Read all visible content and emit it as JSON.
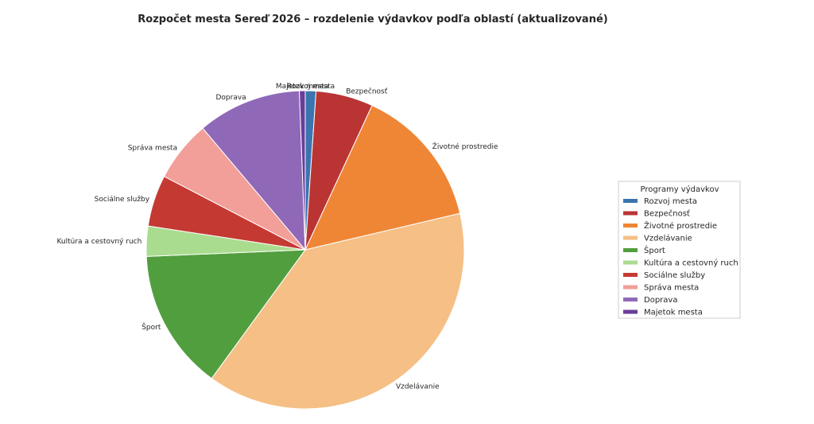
{
  "chart_data": {
    "type": "pie",
    "title": "Rozpočet mesta Sereď 2026 – rozdelenie výdavkov podľa oblastí (aktualizované)",
    "start_angle_deg": 90,
    "direction": "clockwise",
    "slices": [
      {
        "label": "Rozvoj mesta",
        "value": 1.1,
        "color": "#3b75af"
      },
      {
        "label": "Bezpečnosť",
        "value": 5.9,
        "color": "#bb3434"
      },
      {
        "label": "Životné prostredie",
        "value": 14.6,
        "color": "#ef8636"
      },
      {
        "label": "Vzdelávanie",
        "value": 39.2,
        "color": "#f5bf85"
      },
      {
        "label": "Šport",
        "value": 14.5,
        "color": "#519e3e"
      },
      {
        "label": "Kultúra a cestovný ruch",
        "value": 3.1,
        "color": "#aadc8f"
      },
      {
        "label": "Sociálne služby",
        "value": 5.3,
        "color": "#c43a33"
      },
      {
        "label": "Správa mesta",
        "value": 6.3,
        "color": "#f29f99"
      },
      {
        "label": "Doprava",
        "value": 10.7,
        "color": "#8f69b8"
      },
      {
        "label": "Majetok mesta",
        "value": 0.6,
        "color": "#6a3d9a"
      }
    ],
    "legend": {
      "title": "Programy výdavkov",
      "placement": "right",
      "items": [
        "Rozvoj mesta",
        "Bezpečnosť",
        "Životné prostredie",
        "Vzdelávanie",
        "Šport",
        "Kultúra a cestovný ruch",
        "Sociálne služby",
        "Správa mesta",
        "Doprava",
        "Majetok mesta"
      ]
    }
  }
}
